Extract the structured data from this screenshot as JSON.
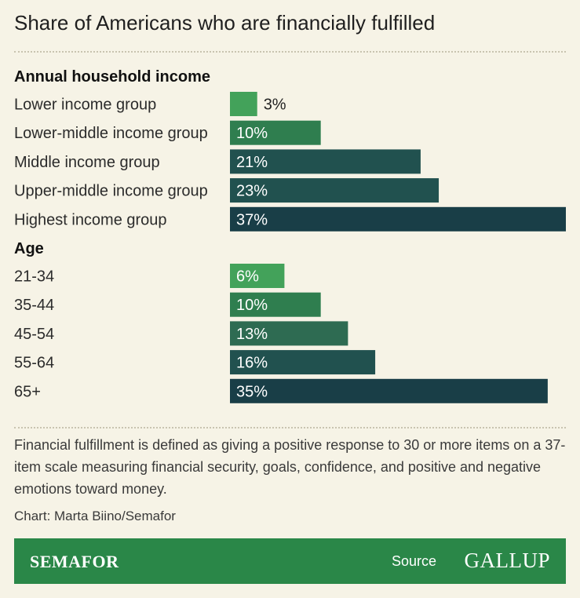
{
  "title": "Share of Americans who are financially fulfilled",
  "note": "Financial fulfillment is defined as giving a positive response to 30 or more items on a 37-item scale measuring financial security, goals, confidence, and positive and negative emotions toward money.",
  "credit": "Chart: Marta Biino/Semafor",
  "footer": {
    "brand": "SEMAFOR",
    "source_label": "Source",
    "source_name": "GALLUP"
  },
  "colors": {
    "background": "#f6f3e6",
    "bar_scale": [
      "#43a25a",
      "#2f7e4f",
      "#2e6b52",
      "#21514f",
      "#193e47"
    ],
    "footer": "#2a8748"
  },
  "chart_data": {
    "type": "bar",
    "orientation": "horizontal",
    "unit": "%",
    "xlim": [
      0,
      37
    ],
    "groups": [
      {
        "name": "Annual household income",
        "categories": [
          "Lower income group",
          "Lower-middle income group",
          "Middle income group",
          "Upper-middle income group",
          "Highest income group"
        ],
        "values": [
          3,
          10,
          21,
          23,
          37
        ],
        "labels": [
          "3%",
          "10%",
          "21%",
          "23%",
          "37%"
        ]
      },
      {
        "name": "Age",
        "categories": [
          "21-34",
          "35-44",
          "45-54",
          "55-64",
          "65+"
        ],
        "values": [
          6,
          10,
          13,
          16,
          35
        ],
        "labels": [
          "6%",
          "10%",
          "13%",
          "16%",
          "35%"
        ]
      }
    ]
  }
}
